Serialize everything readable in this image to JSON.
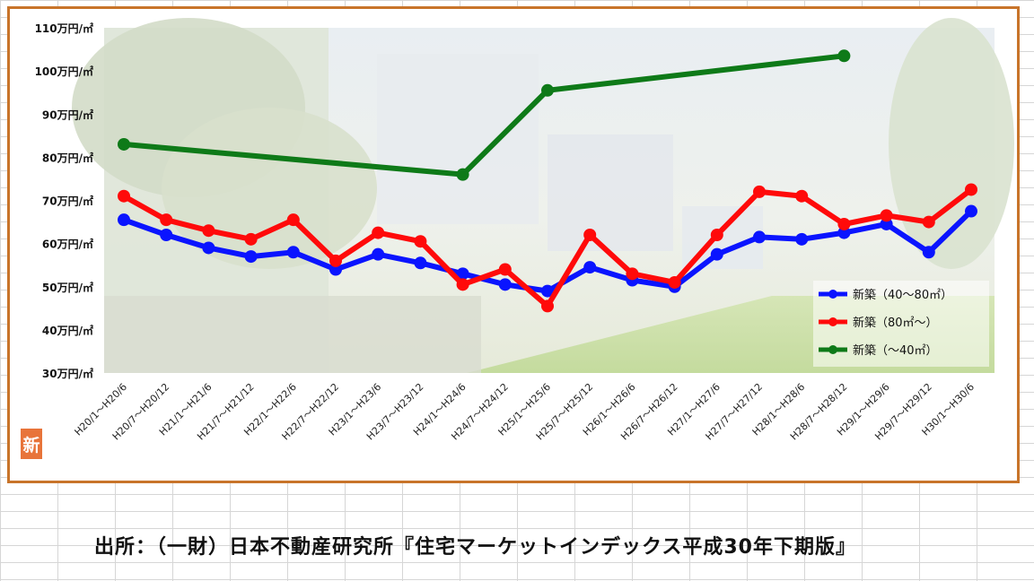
{
  "badge_text": "新",
  "source_caption": "出所：（一財）日本不動産研究所『住宅マーケットインデックス平成30年下期版』",
  "colors": {
    "frame": "#c8742a",
    "series_blue": "#0a14ff",
    "series_red": "#ff0a0a",
    "series_green": "#0e7a18",
    "badge": "#e8743a"
  },
  "chart_data": {
    "type": "line",
    "title": "",
    "xlabel": "",
    "ylabel": "",
    "ylim": [
      30,
      110
    ],
    "yticks": [
      {
        "value": 110,
        "label": "110万円/㎡"
      },
      {
        "value": 100,
        "label": "100万円/㎡"
      },
      {
        "value": 90,
        "label": "90万円/㎡"
      },
      {
        "value": 80,
        "label": "80万円/㎡"
      },
      {
        "value": 70,
        "label": "70万円/㎡"
      },
      {
        "value": 60,
        "label": "60万円/㎡"
      },
      {
        "value": 50,
        "label": "50万円/㎡"
      },
      {
        "value": 40,
        "label": "40万円/㎡"
      },
      {
        "value": 30,
        "label": "30万円/㎡"
      }
    ],
    "grid": false,
    "legend_position": "bottom-right",
    "categories": [
      "H20/1～H20/6",
      "H20/7～H20/12",
      "H21/1～H21/6",
      "H21/7～H21/12",
      "H22/1～H22/6",
      "H22/7～H22/12",
      "H23/1～H23/6",
      "H23/7～H23/12",
      "H24/1～H24/6",
      "H24/7～H24/12",
      "H25/1～H25/6",
      "H25/7～H25/12",
      "H26/1～H26/6",
      "H26/7～H26/12",
      "H27/1～H27/6",
      "H27/7～H27/12",
      "H28/1～H28/6",
      "H28/7～H28/12",
      "H29/1～H29/6",
      "H29/7～H29/12",
      "H30/1～H30/6"
    ],
    "series": [
      {
        "name": "新築（40～80㎡）",
        "color": "#0a14ff",
        "values": [
          65.5,
          62,
          59,
          57,
          58,
          54,
          57.5,
          55.5,
          53,
          50.5,
          49,
          54.5,
          51.5,
          50,
          57.5,
          61.5,
          61,
          62.5,
          64.5,
          58,
          67.5
        ]
      },
      {
        "name": "新築（80㎡～）",
        "color": "#ff0a0a",
        "values": [
          71,
          65.5,
          63,
          61,
          65.5,
          56,
          62.5,
          60.5,
          50.5,
          54,
          45.5,
          62,
          53,
          51,
          62,
          72,
          71,
          64.5,
          66.5,
          65,
          72.5
        ]
      },
      {
        "name": "新築（～40㎡）",
        "color": "#0e7a18",
        "values": [
          83,
          null,
          null,
          null,
          null,
          null,
          null,
          null,
          76,
          null,
          95.5,
          null,
          null,
          null,
          null,
          null,
          null,
          103.5,
          null,
          null,
          null
        ]
      }
    ]
  }
}
